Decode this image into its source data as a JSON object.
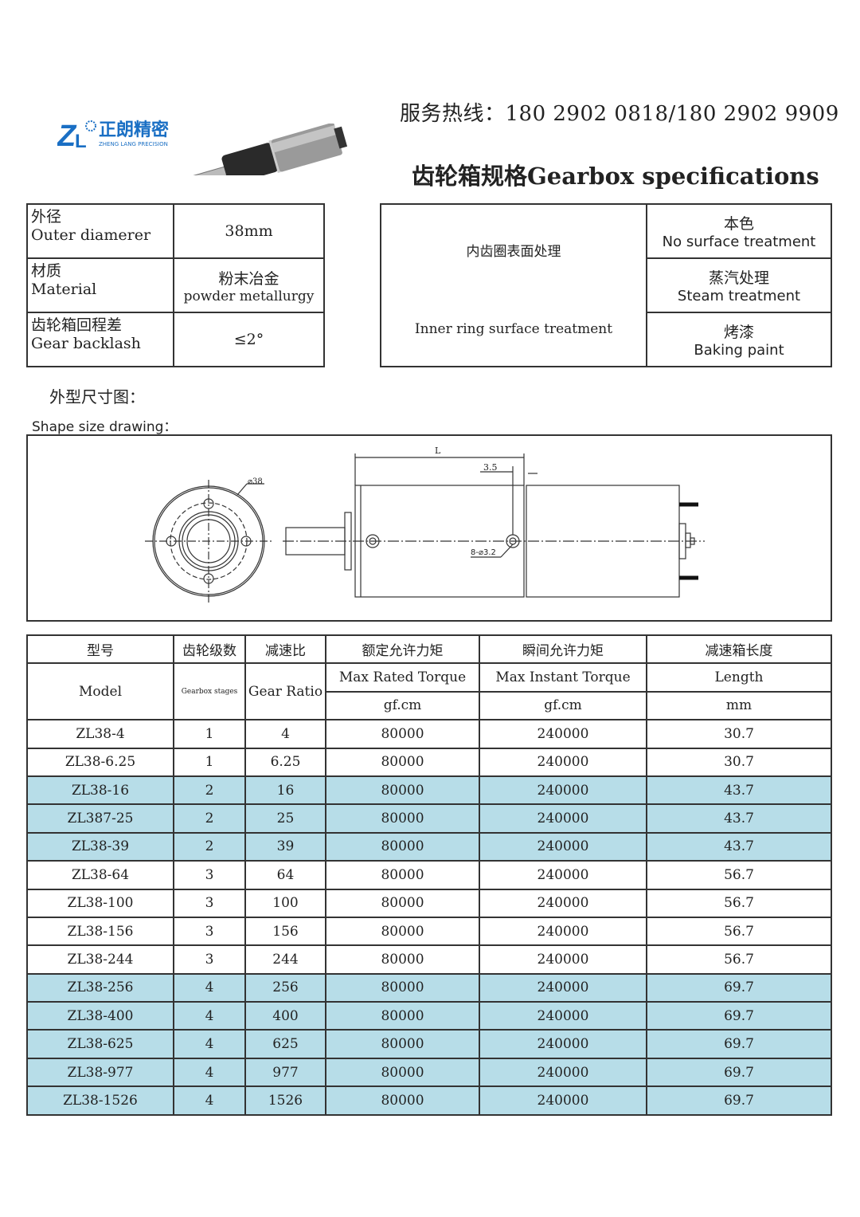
{
  "header": {
    "logo_text": "正朗精密",
    "logo_sub": "ZHENG LANG PRECISION",
    "hotline": "服务热线：180 2902 0818/180 2902 9909",
    "title": "齿轮箱规格Gearbox specifications"
  },
  "brand_color": "#1a6fc4",
  "specs": [
    {
      "label_cn": "外径",
      "label_en": " Outer diamerer",
      "value": "38mm"
    },
    {
      "label_cn": "材质",
      "label_en": " Material",
      "value_cn": "粉末冶金",
      "value_en": "powder metallurgy"
    },
    {
      "label_cn": "齿轮箱回程差",
      "label_en": "Gear backlash",
      "value": "≤2°"
    }
  ],
  "surface": {
    "label_cn": "内齿圈表面处理",
    "label_en": "Inner ring surface treatment",
    "options": [
      {
        "cn": "本色",
        "en": "No surface treatment"
      },
      {
        "cn": "蒸汽处理",
        "en": "Steam treatment"
      },
      {
        "cn": "烤漆",
        "en": "Baking paint"
      }
    ]
  },
  "drawing": {
    "section_cn": "外型尺寸图：",
    "section_en": "Shape size drawing：",
    "dim_L": "L",
    "dim_35": "3.5",
    "dim_dia": "⌀38",
    "dim_holes": "8-⌀3.2"
  },
  "table": {
    "headers": {
      "model_cn": "型号",
      "model_en": "Model",
      "stages_cn": "齿轮级数",
      "stages_en": "Gearbox stages",
      "ratio_cn": "减速比",
      "ratio_en": "Gear Ratio",
      "rated_cn": "额定允许力矩",
      "rated_en": "Max Rated Torque",
      "rated_unit": "gf.cm",
      "instant_cn": "瞬间允许力矩",
      "instant_en": "Max Instant Torque",
      "instant_unit": "gf.cm",
      "length_cn": "减速箱长度",
      "length_en": "Length",
      "length_unit": "mm"
    },
    "highlight_color": "#b7dde8",
    "rows": [
      {
        "model": "ZL38-4",
        "stages": "1",
        "ratio": "4",
        "rated": "80000",
        "instant": "240000",
        "length": "30.7",
        "hl": false
      },
      {
        "model": "ZL38-6.25",
        "stages": "1",
        "ratio": "6.25",
        "rated": "80000",
        "instant": "240000",
        "length": "30.7",
        "hl": false
      },
      {
        "model": "ZL38-16",
        "stages": "2",
        "ratio": "16",
        "rated": "80000",
        "instant": "240000",
        "length": "43.7",
        "hl": true
      },
      {
        "model": "ZL387-25",
        "stages": "2",
        "ratio": "25",
        "rated": "80000",
        "instant": "240000",
        "length": "43.7",
        "hl": true
      },
      {
        "model": "ZL38-39",
        "stages": "2",
        "ratio": "39",
        "rated": "80000",
        "instant": "240000",
        "length": "43.7",
        "hl": true
      },
      {
        "model": "ZL38-64",
        "stages": "3",
        "ratio": "64",
        "rated": "80000",
        "instant": "240000",
        "length": "56.7",
        "hl": false
      },
      {
        "model": "ZL38-100",
        "stages": "3",
        "ratio": "100",
        "rated": "80000",
        "instant": "240000",
        "length": "56.7",
        "hl": false
      },
      {
        "model": "ZL38-156",
        "stages": "3",
        "ratio": "156",
        "rated": "80000",
        "instant": "240000",
        "length": "56.7",
        "hl": false
      },
      {
        "model": "ZL38-244",
        "stages": "3",
        "ratio": "244",
        "rated": "80000",
        "instant": "240000",
        "length": "56.7",
        "hl": false
      },
      {
        "model": "ZL38-256",
        "stages": "4",
        "ratio": "256",
        "rated": "80000",
        "instant": "240000",
        "length": "69.7",
        "hl": true
      },
      {
        "model": "ZL38-400",
        "stages": "4",
        "ratio": "400",
        "rated": "80000",
        "instant": "240000",
        "length": "69.7",
        "hl": true
      },
      {
        "model": "ZL38-625",
        "stages": "4",
        "ratio": "625",
        "rated": "80000",
        "instant": "240000",
        "length": "69.7",
        "hl": true
      },
      {
        "model": "ZL38-977",
        "stages": "4",
        "ratio": "977",
        "rated": "80000",
        "instant": "240000",
        "length": "69.7",
        "hl": true
      },
      {
        "model": "ZL38-1526",
        "stages": "4",
        "ratio": "1526",
        "rated": "80000",
        "instant": "240000",
        "length": "69.7",
        "hl": true
      }
    ]
  }
}
